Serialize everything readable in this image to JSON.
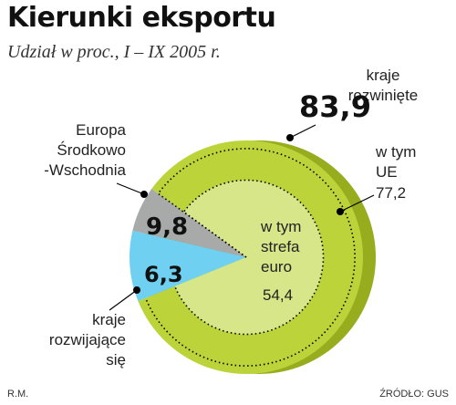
{
  "header": {
    "title": "Kierunki eksportu",
    "subtitle": "Udział w proc., I – IX 2005 r."
  },
  "labels": {
    "developed": [
      "kraje",
      "rozwinięte"
    ],
    "eu": [
      "w tym",
      "UE"
    ],
    "euro": [
      "w tym",
      "strefa",
      "euro"
    ],
    "cee": [
      "Europa",
      "Środkowo",
      "-Wschodnia"
    ],
    "developing": [
      "kraje",
      "rozwijające",
      "się"
    ]
  },
  "values_text": {
    "developed": "83,9",
    "eu": "77,2",
    "euro": "54,4",
    "cee": "9,8",
    "developing": "6,3"
  },
  "footer": {
    "author": "R.M.",
    "source": "ŹRÓDŁO: GUS"
  },
  "colors": {
    "developed": "#bcd43a",
    "developed_side": "#97ad1e",
    "euro": "#d6e689",
    "cee": "#6fd0f1",
    "developing": "#a8a9a9"
  },
  "chart_data": {
    "type": "pie",
    "title": "Kierunki eksportu",
    "subtitle": "Udział w proc., I – IX 2005 r.",
    "slices": [
      {
        "label": "kraje rozwinięte",
        "value": 83.9
      },
      {
        "label": "Europa Środkowo-Wschodnia",
        "value": 9.8
      },
      {
        "label": "kraje rozwijające się",
        "value": 6.3
      }
    ],
    "nested_within_developed": [
      {
        "label": "w tym UE",
        "value": 77.2
      },
      {
        "label": "w tym strefa euro",
        "value": 54.4
      }
    ]
  }
}
